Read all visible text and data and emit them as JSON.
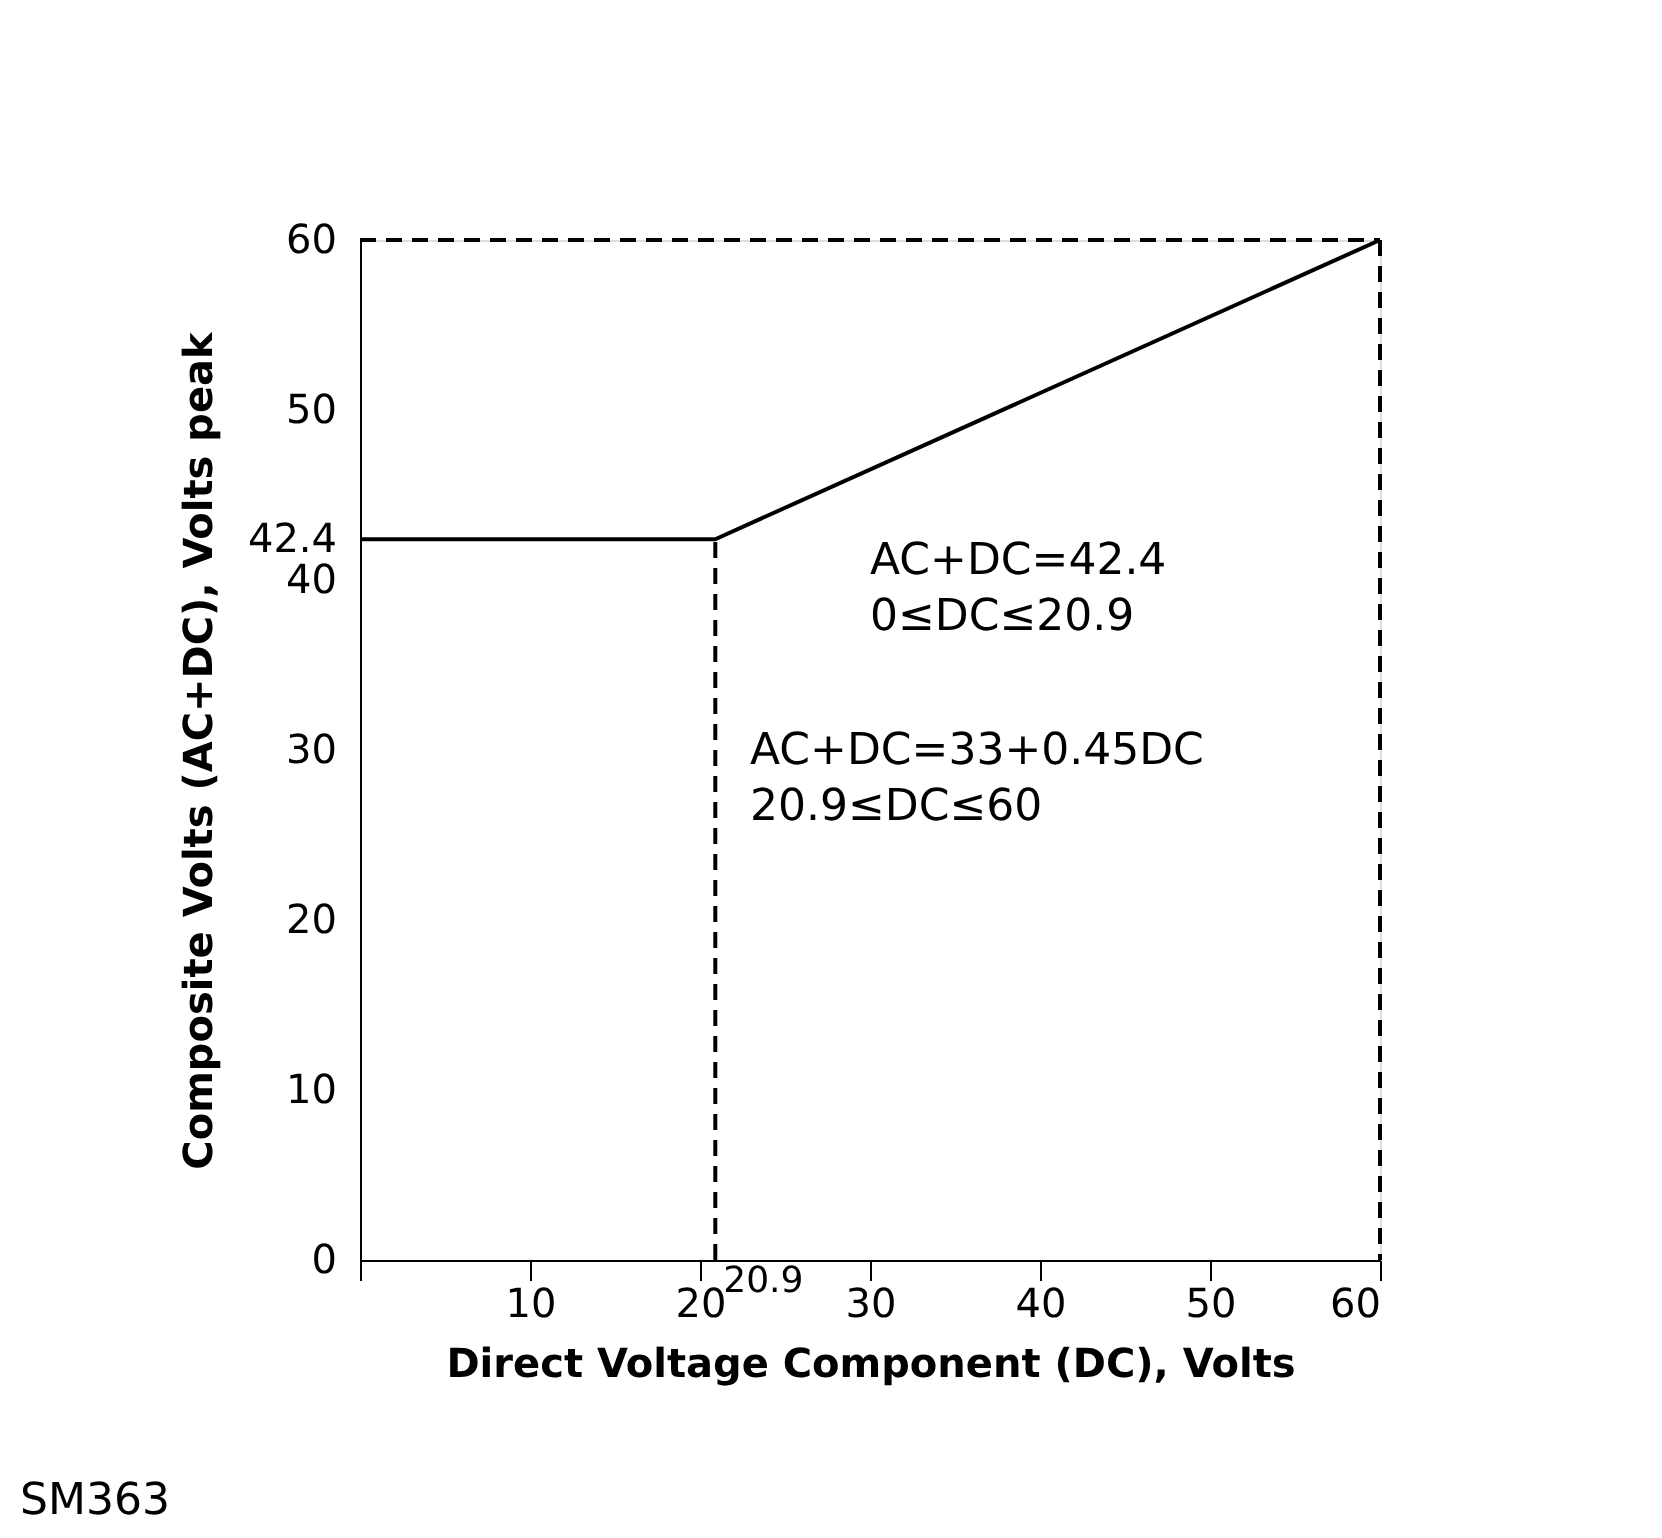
{
  "chart_data": {
    "type": "line",
    "xlabel": "Direct Voltage Component (DC), Volts",
    "ylabel": "Composite Volts (AC+DC), Volts peak",
    "xlim": [
      0,
      60
    ],
    "ylim": [
      0,
      60
    ],
    "xticks": [
      {
        "value": 0,
        "label": null
      },
      10,
      20,
      30,
      40,
      50,
      60
    ],
    "yticks": [
      0,
      10,
      20,
      30,
      {
        "value": 40,
        "label": "40"
      },
      {
        "value": 42.4,
        "label": "42.4"
      },
      50,
      60
    ],
    "series": [
      {
        "x": [
          0,
          20.9,
          60
        ],
        "values": [
          42.4,
          42.4,
          60
        ],
        "color": "#000000",
        "line_style": "solid"
      },
      {
        "x": [
          20.9,
          20.9
        ],
        "values": [
          0,
          42.4
        ],
        "color": "#000000",
        "line_style": "dashed"
      },
      {
        "x": [
          0,
          60
        ],
        "values": [
          60,
          60
        ],
        "color": "#000000",
        "line_style": "dashed"
      },
      {
        "x": [
          60,
          60
        ],
        "values": [
          60,
          0
        ],
        "color": "#000000",
        "line_style": "dashed"
      }
    ],
    "annotations": [
      "AC+DC=42.4\n0≤DC≤20.9",
      "AC+DC=33+0.45DC\n20.9≤DC≤60",
      "SM363",
      {
        "text": "20.9",
        "x": 20.9,
        "y": 0
      }
    ],
    "marker": "none"
  }
}
